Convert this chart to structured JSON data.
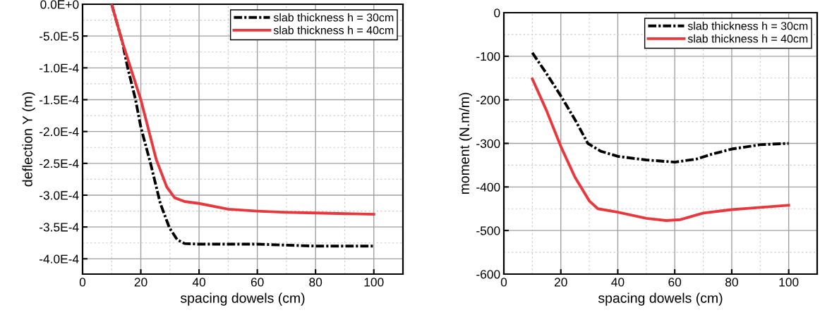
{
  "chart_data": [
    {
      "type": "line",
      "xlabel": "spacing dowels (cm)",
      "ylabel": "deflection Y (m)",
      "xlim": [
        0,
        110
      ],
      "xticks": [
        0,
        20,
        40,
        60,
        80,
        100
      ],
      "ylim": [
        -0.000424,
        0
      ],
      "yticks": [
        {
          "value": 0,
          "label": "0.0E+0"
        },
        {
          "value": -5e-05,
          "label": "-5.0E-5"
        },
        {
          "value": -0.0001,
          "label": "-1.0E-4"
        },
        {
          "value": -0.00015,
          "label": "-1.5E-4"
        },
        {
          "value": -0.0002,
          "label": "-2.0E-4"
        },
        {
          "value": -0.00025,
          "label": "-2.5E-4"
        },
        {
          "value": -0.0003,
          "label": "-3.0E-4"
        },
        {
          "value": -0.00035,
          "label": "-3.5E-4"
        },
        {
          "value": -0.0004,
          "label": "-4.0E-4"
        }
      ],
      "grid": true,
      "legend": "top right",
      "marker": "none",
      "series": [
        {
          "name": "slab thickness h = 30cm",
          "color": "#000000",
          "line_style": "dashdot",
          "x": [
            10,
            13.7,
            15.5,
            18.2,
            20,
            23.5,
            26.7,
            29.8,
            32.5,
            35,
            40,
            60,
            80,
            100
          ],
          "values": [
            0,
            -6e-05,
            -0.0001,
            -0.00015,
            -0.000193,
            -0.000253,
            -0.000313,
            -0.000351,
            -0.00037,
            -0.000376,
            -0.000377,
            -0.000377,
            -0.00038,
            -0.00038
          ]
        },
        {
          "name": "slab thickness h = 40cm",
          "color": "#e8383d",
          "line_style": "solid",
          "x": [
            10,
            13.7,
            20,
            25.3,
            28.9,
            31.6,
            35,
            40,
            50,
            60,
            70,
            80,
            90,
            100
          ],
          "values": [
            0,
            -6e-05,
            -0.00015,
            -0.000244,
            -0.000287,
            -0.000304,
            -0.00031,
            -0.000313,
            -0.000322,
            -0.000325,
            -0.000327,
            -0.000328,
            -0.000329,
            -0.00033
          ]
        }
      ]
    },
    {
      "type": "line",
      "xlabel": "spacing dowels (cm)",
      "ylabel": "moment (N.m/m)",
      "xlim": [
        0,
        110
      ],
      "xticks": [
        0,
        20,
        40,
        60,
        80,
        100
      ],
      "ylim": [
        -600,
        0
      ],
      "yticks": [
        -600,
        -500,
        -400,
        -300,
        -200,
        -100,
        0
      ],
      "grid": true,
      "legend": "top right",
      "marker": "none",
      "series": [
        {
          "name": "slab thickness h = 30cm",
          "color": "#000000",
          "line_style": "dashdot",
          "x": [
            10,
            14.9,
            20.2,
            25.1,
            29.5,
            34,
            40.2,
            50,
            60,
            67.6,
            72.9,
            80,
            90,
            100
          ],
          "values": [
            -92,
            -139,
            -193,
            -247,
            -300,
            -318,
            -330,
            -338,
            -343,
            -336,
            -325,
            -313,
            -303,
            -300
          ]
        },
        {
          "name": "slab thickness h = 40cm",
          "color": "#e8383d",
          "line_style": "solid",
          "x": [
            10,
            15,
            20,
            25,
            30,
            33,
            40,
            50,
            57,
            62,
            70,
            80,
            90,
            100
          ],
          "values": [
            -152,
            -225,
            -307,
            -378,
            -432,
            -450,
            -458,
            -472,
            -477,
            -475,
            -460,
            -452,
            -447,
            -442
          ]
        }
      ]
    }
  ]
}
